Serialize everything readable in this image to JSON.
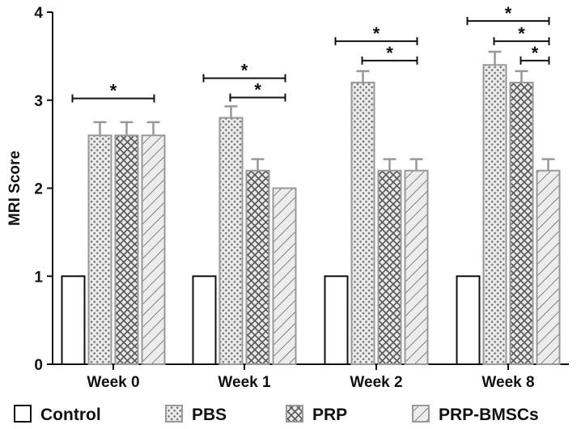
{
  "chart_data": {
    "type": "bar",
    "title": "",
    "xlabel": "",
    "ylabel": "MRI Score",
    "ylim": [
      0,
      4
    ],
    "yticks": [
      0,
      1,
      2,
      3,
      4
    ],
    "categories": [
      "Week 0",
      "Week 1",
      "Week 2",
      "Week 8"
    ],
    "series": [
      {
        "name": "Control",
        "pattern": "none",
        "values": [
          1,
          1,
          1,
          1
        ],
        "errors": [
          0,
          0,
          0,
          0
        ]
      },
      {
        "name": "PBS",
        "pattern": "dots",
        "values": [
          2.6,
          2.8,
          3.2,
          3.4
        ],
        "errors": [
          0.15,
          0.13,
          0.13,
          0.15
        ]
      },
      {
        "name": "PRP",
        "pattern": "crosshatch",
        "values": [
          2.6,
          2.2,
          2.2,
          3.2
        ],
        "errors": [
          0.15,
          0.13,
          0.13,
          0.13
        ]
      },
      {
        "name": "PRP-BMSCs",
        "pattern": "diagonal",
        "values": [
          2.6,
          2.0,
          2.2,
          2.2
        ],
        "errors": [
          0.15,
          0,
          0.13,
          0.13
        ]
      }
    ],
    "significance": [
      {
        "category": 0,
        "from": 0,
        "to": 3,
        "y": 3.02,
        "label": "*"
      },
      {
        "category": 1,
        "from": 0,
        "to": 3,
        "y": 3.25,
        "label": "*"
      },
      {
        "category": 1,
        "from": 1,
        "to": 3,
        "y": 3.03,
        "label": "*"
      },
      {
        "category": 2,
        "from": 0,
        "to": 3,
        "y": 3.67,
        "label": "*"
      },
      {
        "category": 2,
        "from": 1,
        "to": 3,
        "y": 3.45,
        "label": "*"
      },
      {
        "category": 3,
        "from": 0,
        "to": 3,
        "y": 3.9,
        "label": "*"
      },
      {
        "category": 3,
        "from": 1,
        "to": 3,
        "y": 3.67,
        "label": "*"
      },
      {
        "category": 3,
        "from": 2,
        "to": 3,
        "y": 3.45,
        "label": "*"
      }
    ],
    "legend_position": "bottom"
  },
  "colors": {
    "axis": "#111111",
    "bar_stroke": "#999999",
    "bar_fill": "#e6e6e6",
    "pattern": "#6a6a6a",
    "control_stroke": "#111111",
    "control_fill": "#ffffff"
  }
}
